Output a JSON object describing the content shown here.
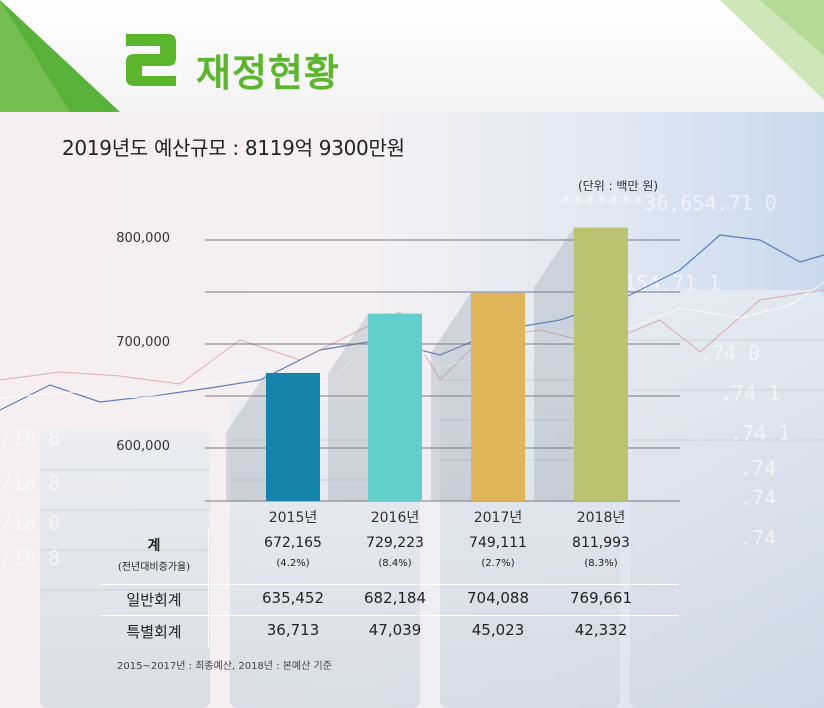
{
  "header": {
    "badge_glyph": "2",
    "title": "재정현황"
  },
  "subtitle": "2019년도 예산규모 : 8119억 9300만원",
  "chart_data": {
    "type": "bar",
    "unit_note": "(단위 : 백만 원)",
    "categories": [
      "2015년",
      "2016년",
      "2017년",
      "2018년"
    ],
    "values": [
      672165,
      729223,
      749111,
      811993
    ],
    "colors": [
      "#1484ad",
      "#63cfcd",
      "#e0b55a",
      "#bcc26f"
    ],
    "ylim": [
      550000,
      815000
    ],
    "yticks": [
      {
        "value": 600000,
        "label": "600,000"
      },
      {
        "value": 700000,
        "label": "700,000"
      },
      {
        "value": 800000,
        "label": "800,000"
      }
    ],
    "gridlines": [
      600000,
      650000,
      700000,
      750000,
      800000
    ]
  },
  "table": {
    "rows": [
      {
        "head": "계",
        "subhead": "(전년대비증가율)",
        "values": [
          "672,165",
          "729,223",
          "749,111",
          "811,993"
        ],
        "subvalues": [
          "(4.2%)",
          "(8.4%)",
          "(2.7%)",
          "(8.3%)"
        ]
      },
      {
        "head": "일반회계",
        "values": [
          "635,452",
          "682,184",
          "704,088",
          "769,661"
        ]
      },
      {
        "head": "특별회계",
        "values": [
          "36,713",
          "47,039",
          "45,023",
          "42,332"
        ]
      }
    ]
  },
  "footnote": "2015~2017년 : 최종예산,  2018년 : 본예산 기준"
}
